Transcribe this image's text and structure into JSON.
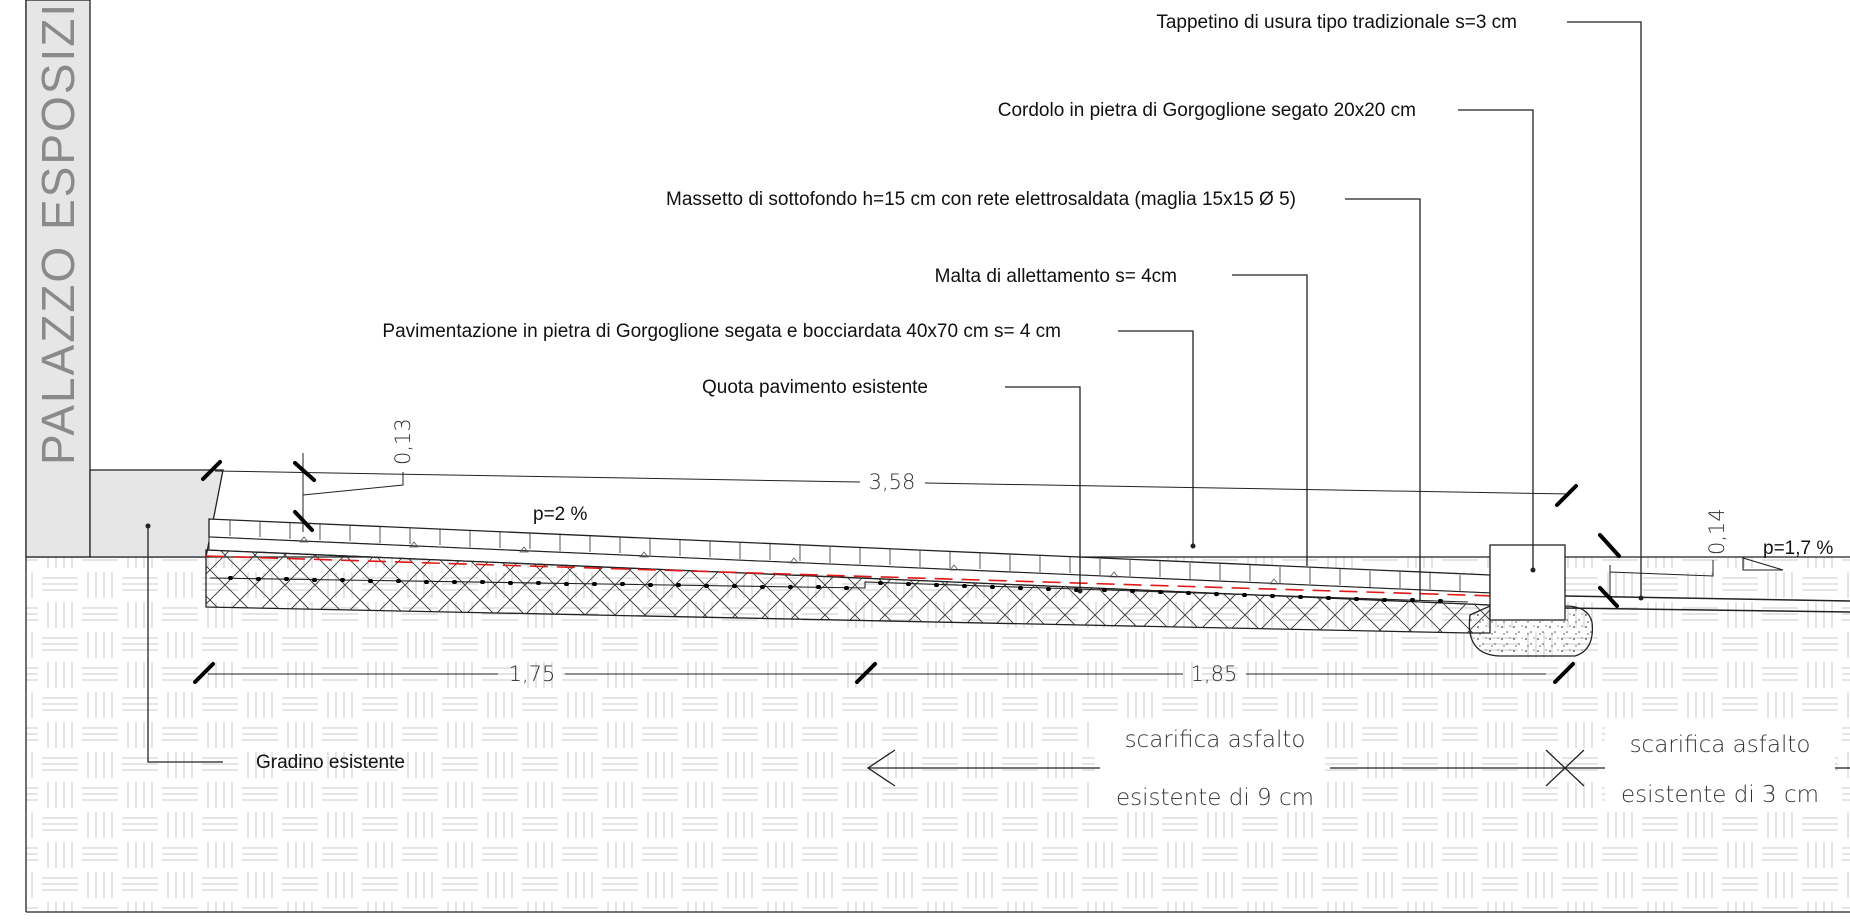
{
  "building_label": "PALAZZO  ESPOSIZIONI",
  "callouts": [
    {
      "id": "tappetino",
      "text": "Tappetino di usura tipo tradizionale s=3 cm"
    },
    {
      "id": "cordolo",
      "text": "Cordolo in pietra di Gorgoglione segato 20x20 cm"
    },
    {
      "id": "massetto",
      "text": "Massetto di sottofondo h=15 cm con rete elettrosaldata (maglia 15x15 Ø 5)"
    },
    {
      "id": "malta",
      "text": "Malta di allettamento s= 4cm"
    },
    {
      "id": "pavimentazione",
      "text": "Pavimentazione in pietra di Gorgoglione segata e bocciardata 40x70 cm s= 4 cm"
    },
    {
      "id": "quota",
      "text": "Quota pavimento esistente"
    },
    {
      "id": "gradino",
      "text": "Gradino esistente"
    }
  ],
  "dimensions": {
    "total_length": "3,58",
    "height_left": "0,13",
    "height_right": "0,14",
    "segment_left": "1,75",
    "segment_right": "1,85"
  },
  "slopes": {
    "ramp": "p=2 %",
    "road": "p=1,7 %"
  },
  "notes": {
    "scarifica_left_line1": "scarifica asfalto",
    "scarifica_left_line2": "esistente di 9 cm",
    "scarifica_right_line1": "scarifica asfalto",
    "scarifica_right_line2": "esistente di 3 cm"
  },
  "colors": {
    "line": "#222222",
    "hatch_ground": "#c9c9c9",
    "building_fill": "#e6e6e6",
    "red_axis": "#e01818",
    "building_text": "#8a8a8a"
  }
}
